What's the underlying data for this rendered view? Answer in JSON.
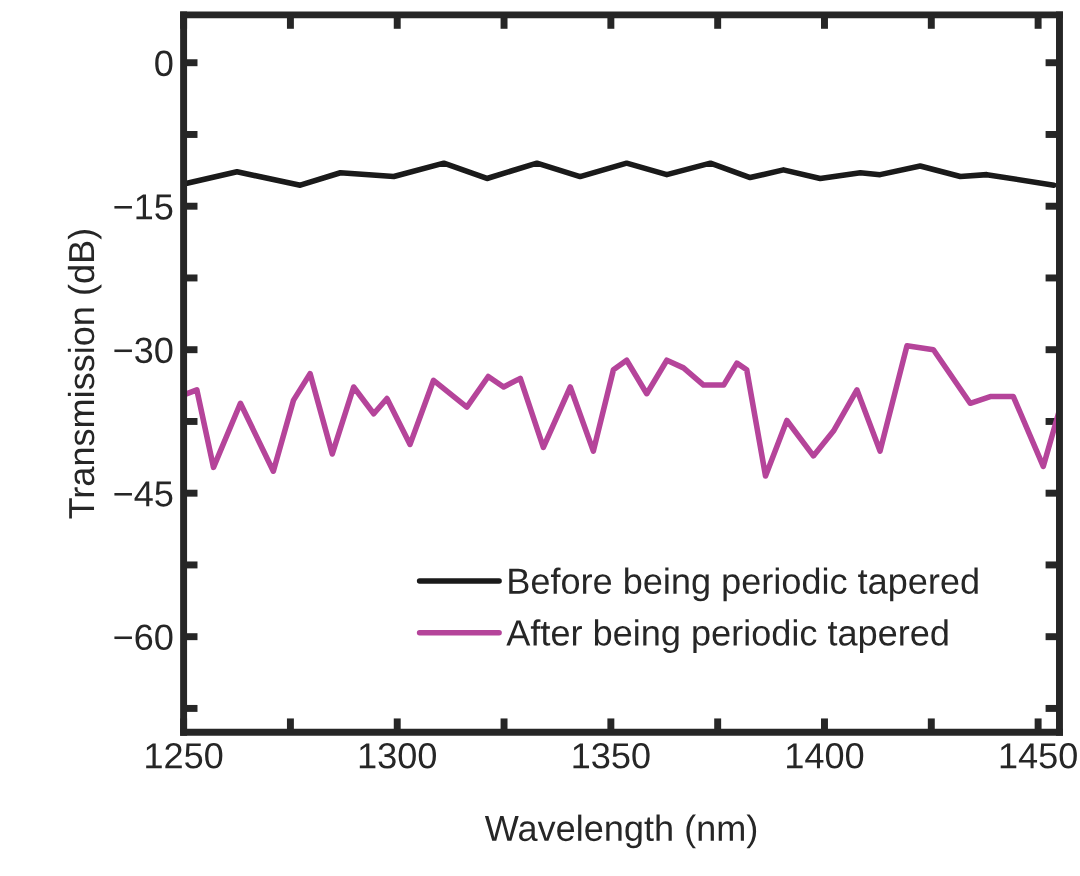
{
  "chart_data": {
    "type": "line",
    "xlabel": "Wavelength (nm)",
    "ylabel": "Transmission (dB)",
    "xlim": [
      1250,
      1455
    ],
    "ylim": [
      -70,
      5
    ],
    "xticks": [
      1250,
      {
        "value": 1275,
        "label": null
      },
      1300,
      {
        "value": 1325,
        "label": null
      },
      1350,
      {
        "value": 1375,
        "label": null
      },
      1400,
      {
        "value": 1425,
        "label": null
      },
      1450
    ],
    "yticks": [
      {
        "value": -67.5,
        "label": null
      },
      {
        "value": -60,
        "label": "−60"
      },
      {
        "value": -52.5,
        "label": null
      },
      {
        "value": -45,
        "label": "−45"
      },
      {
        "value": -37.5,
        "label": null
      },
      {
        "value": -30,
        "label": "−30"
      },
      {
        "value": -22.5,
        "label": null
      },
      {
        "value": -15,
        "label": "−15"
      },
      {
        "value": -7.5,
        "label": null
      },
      0
    ],
    "legend": "bottom right",
    "grid": false,
    "line_style": "solid",
    "marker": "none",
    "series": [
      {
        "name": "Before being periodic tapered",
        "color": "#1a1a1a",
        "x": [
          1250.8,
          1262.5,
          1277.3,
          1286.7,
          1299.2,
          1310.9,
          1321,
          1332.7,
          1342.8,
          1353.7,
          1363.1,
          1373.3,
          1382.6,
          1390.4,
          1399,
          1408.4,
          1413,
          1422.4,
          1431.8,
          1438,
          1453.7
        ],
        "values": [
          -12.6,
          -11.4,
          -12.8,
          -11.5,
          -11.9,
          -10.5,
          -12.1,
          -10.5,
          -11.9,
          -10.5,
          -11.7,
          -10.5,
          -12.0,
          -11.2,
          -12.1,
          -11.5,
          -11.7,
          -10.8,
          -11.9,
          -11.7,
          -12.8
        ]
      },
      {
        "name": "After being periodic tapered",
        "color": "#b5449a",
        "x": [
          1250.8,
          1253.1,
          1257,
          1263.3,
          1271,
          1275.7,
          1279.6,
          1284.8,
          1289.8,
          1294.5,
          1297.6,
          1303,
          1308.5,
          1316.3,
          1321.3,
          1324.9,
          1328.8,
          1334.2,
          1340.5,
          1345.9,
          1350.6,
          1353.7,
          1358.4,
          1363.1,
          1367,
          1371.7,
          1376.4,
          1379.5,
          1381.8,
          1386.2,
          1391.2,
          1397.4,
          1402.1,
          1407.6,
          1413,
          1419.3,
          1425.5,
          1434.1,
          1438.8,
          1444.2,
          1451.2,
          1455
        ],
        "values": [
          -34.6,
          -34.2,
          -42.3,
          -35.6,
          -42.7,
          -35.3,
          -32.5,
          -40.9,
          -33.9,
          -36.7,
          -35.1,
          -39.9,
          -33.2,
          -36.0,
          -32.8,
          -33.9,
          -33.0,
          -40.2,
          -33.9,
          -40.6,
          -32.1,
          -31.1,
          -34.6,
          -31.1,
          -31.9,
          -33.7,
          -33.7,
          -31.4,
          -32.1,
          -43.2,
          -37.4,
          -41.1,
          -38.5,
          -34.2,
          -40.6,
          -29.6,
          -30.0,
          -35.6,
          -34.9,
          -34.9,
          -42.2,
          -36.3
        ]
      }
    ]
  }
}
